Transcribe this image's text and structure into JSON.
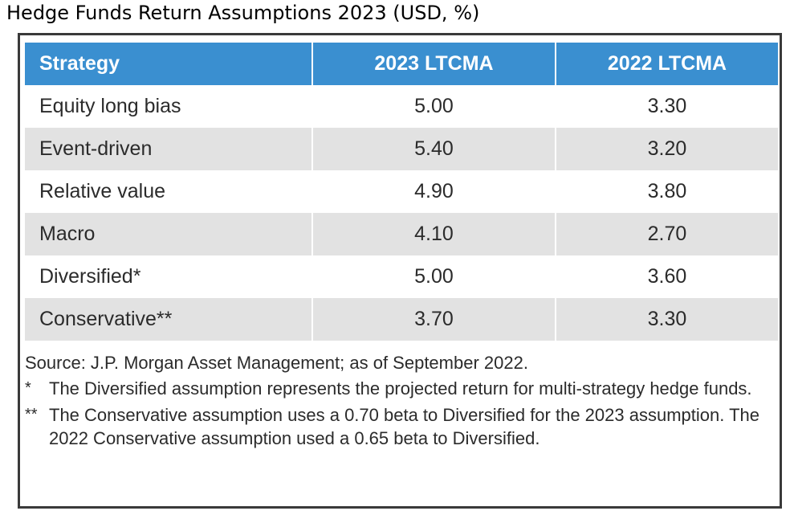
{
  "page_title": "Hedge Funds Return Assumptions 2023 (USD, %)",
  "chart_data": {
    "type": "table",
    "title": "Hedge Funds Return Assumptions 2023 (USD, %)",
    "columns": [
      "Strategy",
      "2023 LTCMA",
      "2022 LTCMA"
    ],
    "rows": [
      {
        "strategy": "Equity long bias",
        "ltcma_2023": "5.00",
        "ltcma_2022": "3.30"
      },
      {
        "strategy": "Event-driven",
        "ltcma_2023": "5.40",
        "ltcma_2022": "3.20"
      },
      {
        "strategy": "Relative value",
        "ltcma_2023": "4.90",
        "ltcma_2022": "3.80"
      },
      {
        "strategy": "Macro",
        "ltcma_2023": "4.10",
        "ltcma_2022": "2.70"
      },
      {
        "strategy": "Diversified*",
        "ltcma_2023": "5.00",
        "ltcma_2022": "3.60"
      },
      {
        "strategy": "Conservative**",
        "ltcma_2023": "3.70",
        "ltcma_2022": "3.30"
      }
    ],
    "series": [
      {
        "name": "2023 LTCMA",
        "values": [
          5.0,
          5.4,
          4.9,
          4.1,
          5.0,
          3.7
        ]
      },
      {
        "name": "2022 LTCMA",
        "values": [
          3.3,
          3.2,
          3.8,
          2.7,
          3.6,
          3.3
        ]
      }
    ]
  },
  "notes": {
    "source": "Source: J.P. Morgan Asset Management; as of September 2022.",
    "footnotes": [
      {
        "mark": "*",
        "text": "The Diversified assumption represents the projected return for multi-strategy hedge funds."
      },
      {
        "mark": "**",
        "text": "The Conservative assumption uses a 0.70 beta to Diversified for the 2023 assumption. The 2022 Conservative assumption used a 0.65 beta to Diversified."
      }
    ]
  },
  "colors": {
    "header_bg": "#3a8fd0",
    "header_text": "#ffffff",
    "row_alt_bg": "#e2e2e2",
    "frame_border": "#3a3a3a"
  }
}
